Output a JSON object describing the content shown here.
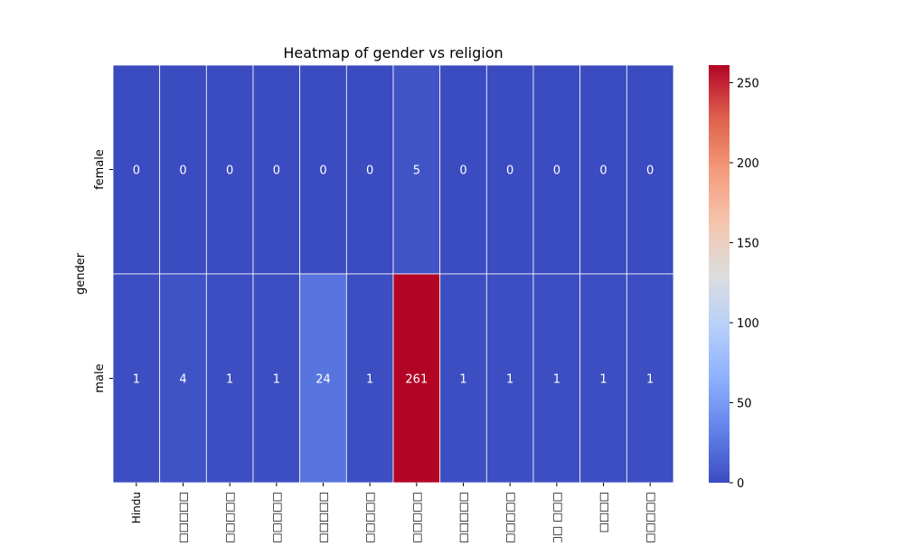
{
  "chart_data": {
    "type": "heatmap",
    "title": "Heatmap of gender vs religion",
    "xlabel": "",
    "ylabel": "gender",
    "rows": [
      "female",
      "male"
    ],
    "columns": [
      "Hindu",
      "□□□□□",
      "□□□□□□□",
      "□□□□□",
      "□□□□□",
      "□□□□□□",
      "□□□□□",
      ", □□□□□",
      "□ □□□□□",
      "□□□ □□□",
      "□□□□",
      "□□□□□□"
    ],
    "values": [
      [
        0,
        0,
        0,
        0,
        0,
        0,
        5,
        0,
        0,
        0,
        0,
        0
      ],
      [
        1,
        4,
        1,
        1,
        24,
        1,
        261,
        1,
        1,
        1,
        1,
        1
      ]
    ],
    "colormap": "coolwarm",
    "vmin": 0,
    "vmax": 261,
    "colorbar_ticks": [
      0,
      50,
      100,
      150,
      200,
      250
    ],
    "annotations": true,
    "cell_border_color": "#ffffff"
  }
}
